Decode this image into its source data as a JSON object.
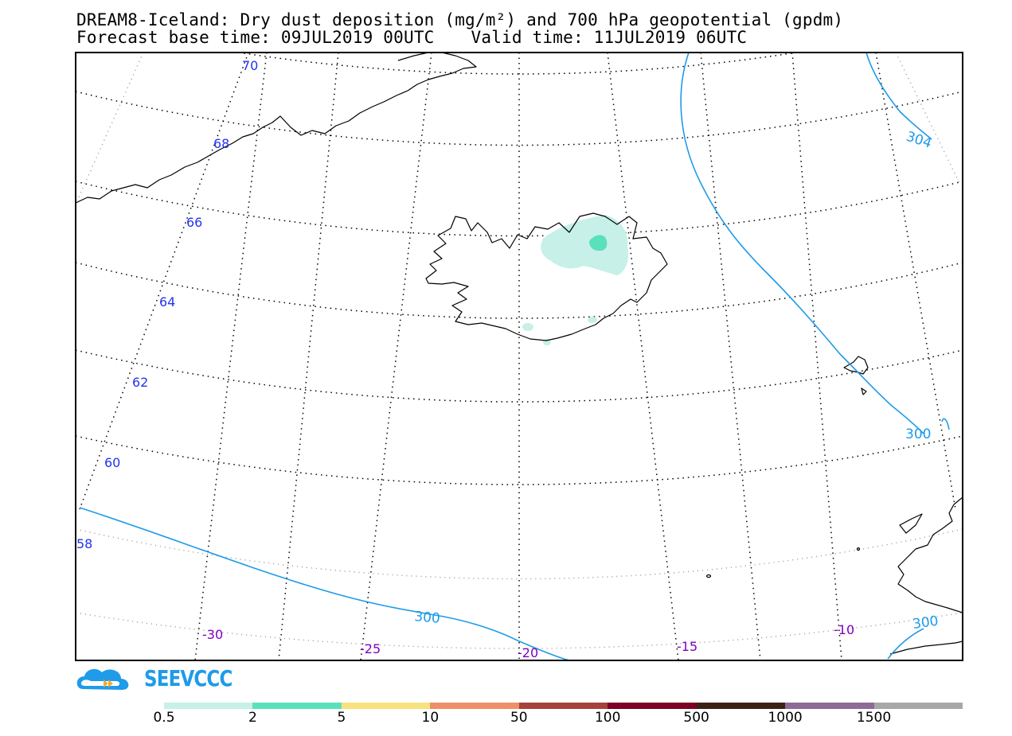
{
  "title": {
    "line1": "DREAM8-Iceland: Dry dust deposition (mg/m²) and 700 hPa geopotential (gpdm)",
    "forecast_base": "Forecast base time: 09JUL2019 00UTC",
    "valid_time": "Valid time: 11JUL2019 06UTC"
  },
  "map": {
    "latitude_labels": [
      "70",
      "68",
      "66",
      "64",
      "62",
      "60",
      "58"
    ],
    "longitude_labels": [
      "-30",
      "-25",
      "-20",
      "-15",
      "-10"
    ],
    "contour_labels": [
      "304",
      "300",
      "300",
      "300"
    ],
    "colors": {
      "latitude_labels": "#2233ee",
      "longitude_labels": "#8000c0",
      "contours": "#1e9be9",
      "coastline": "#000000"
    },
    "dust_deposition": {
      "region": "northeast Iceland",
      "classes_present": [
        "0.5",
        "2"
      ]
    }
  },
  "logo": {
    "text": "SEEVCCC",
    "color": "#1e9be9",
    "icon": "cloud-logo-icon"
  },
  "legend": {
    "colors": [
      "#c6f0e8",
      "#5be0bc",
      "#f7e27e",
      "#ee8f68",
      "#a6413b",
      "#7d0027",
      "#3b2314",
      "#8c6b97",
      "#a8a8a8"
    ],
    "labels": [
      "0.5",
      "2",
      "5",
      "10",
      "50",
      "100",
      "500",
      "1000",
      "1500"
    ]
  }
}
